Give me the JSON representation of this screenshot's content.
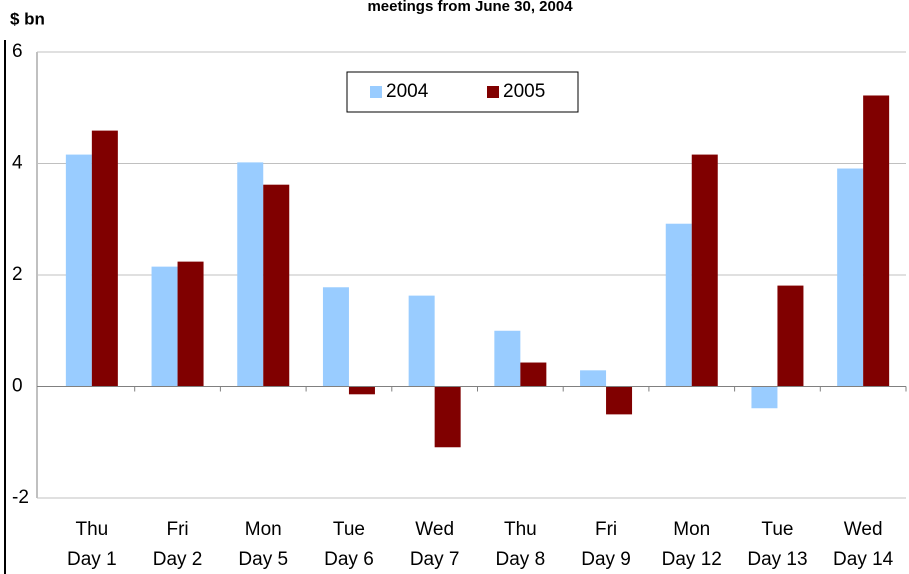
{
  "chart_data": {
    "type": "bar",
    "title": "meetings from June 30, 2004",
    "y_label": "$ bn",
    "categories": [
      [
        "Thu",
        "Day 1"
      ],
      [
        "Fri",
        "Day 2"
      ],
      [
        "Mon",
        "Day 5"
      ],
      [
        "Tue",
        "Day 6"
      ],
      [
        "Wed",
        "Day 7"
      ],
      [
        "Thu",
        "Day 8"
      ],
      [
        "Fri",
        "Day 9"
      ],
      [
        "Mon",
        "Day 12"
      ],
      [
        "Tue",
        "Day 13"
      ],
      [
        "Wed",
        "Day 14"
      ]
    ],
    "series": [
      {
        "name": "2004",
        "color": "#99ccff",
        "values": [
          4.16,
          2.15,
          4.02,
          1.78,
          1.63,
          1.0,
          0.29,
          2.92,
          -0.39,
          3.91
        ]
      },
      {
        "name": "2005",
        "color": "#800000",
        "values": [
          4.59,
          2.24,
          3.62,
          -0.14,
          -1.09,
          0.43,
          -0.5,
          4.16,
          1.81,
          5.22
        ]
      }
    ],
    "ylim": [
      -2,
      6
    ],
    "yticks": [
      -2,
      0,
      2,
      4,
      6
    ],
    "grid": true,
    "legend": "top"
  }
}
